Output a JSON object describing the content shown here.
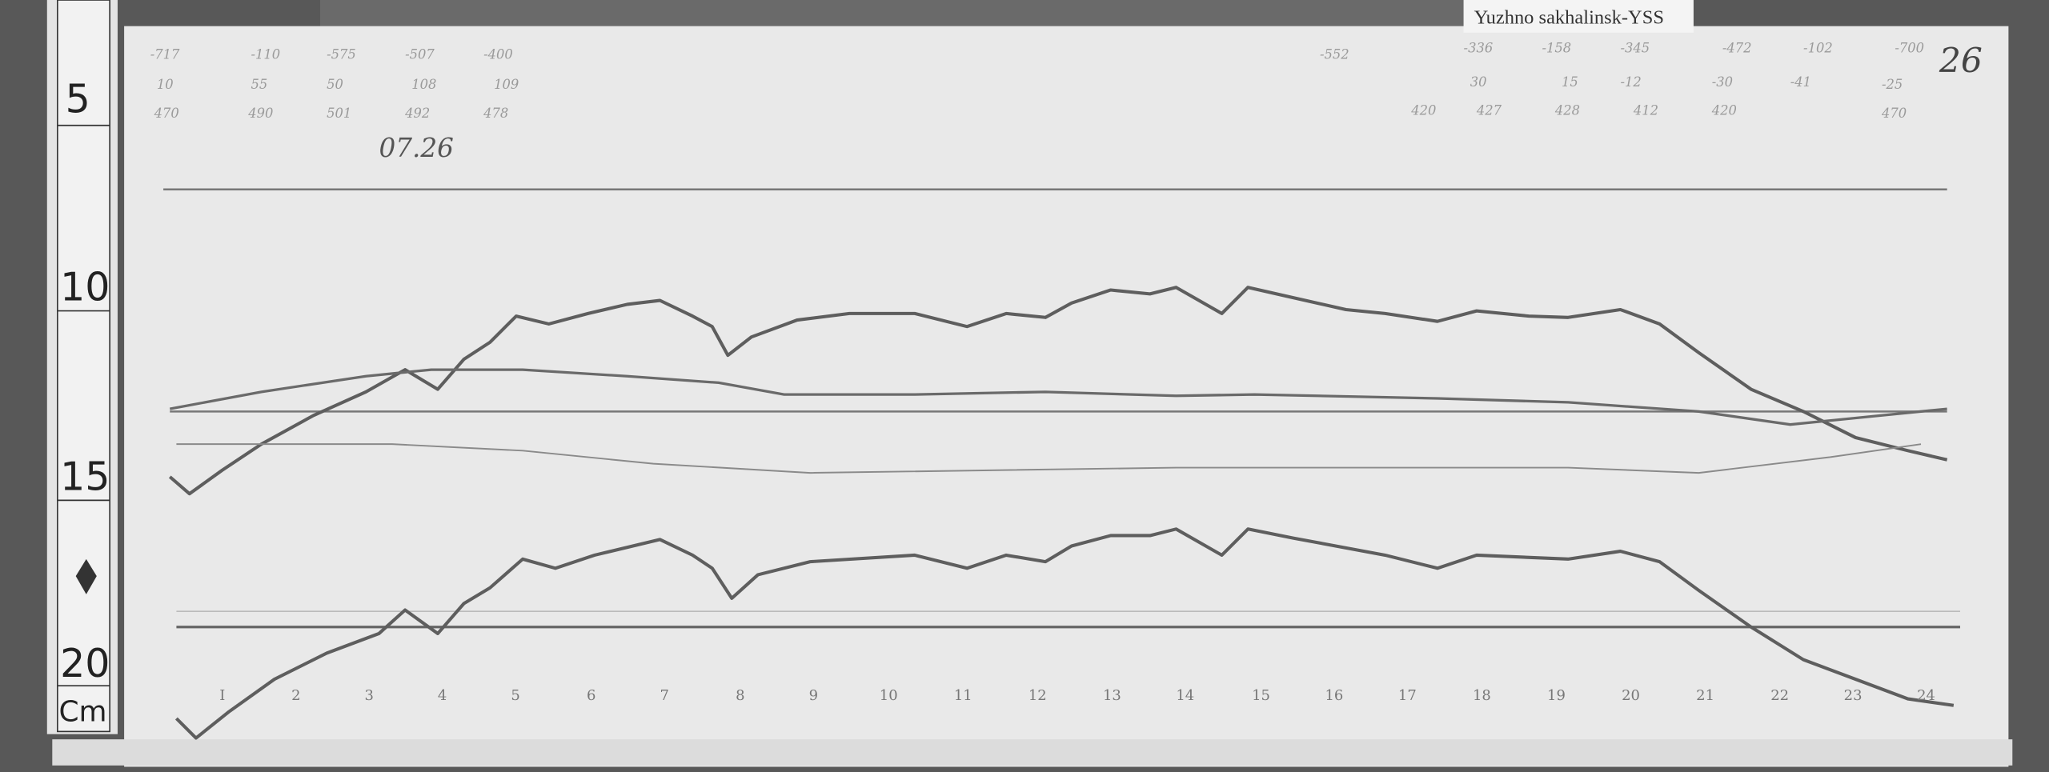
{
  "station_label": "Yuzhno sakhalinsk-YSS",
  "day_number": "26",
  "date_note": "07.26",
  "ruler": {
    "marks": [
      "5",
      "10",
      "15",
      "20"
    ],
    "unit": "Cm"
  },
  "hour_labels": [
    "I",
    "2",
    "3",
    "4",
    "5",
    "6",
    "7",
    "8",
    "9",
    "10",
    "11",
    "12",
    "13",
    "14",
    "15",
    "16",
    "17",
    "18",
    "19",
    "20",
    "21",
    "22",
    "23",
    "24"
  ],
  "handwritten_rows": [
    [
      "-717",
      "-110",
      "-575",
      "-507",
      "-400",
      "-552",
      "-336",
      "-158",
      "-345",
      "-472",
      "-102",
      "-700"
    ],
    [
      "10",
      "55",
      "50",
      "108",
      "109",
      "30",
      "15",
      "-12",
      "-30",
      "-41",
      "-25"
    ],
    [
      "470",
      "490",
      "501",
      "492",
      "478",
      "420",
      "427",
      "428",
      "412",
      "420",
      "470"
    ]
  ],
  "colors": {
    "background": "#555555",
    "paper": "#e9e9e9",
    "trace": "#5e5e5e"
  }
}
